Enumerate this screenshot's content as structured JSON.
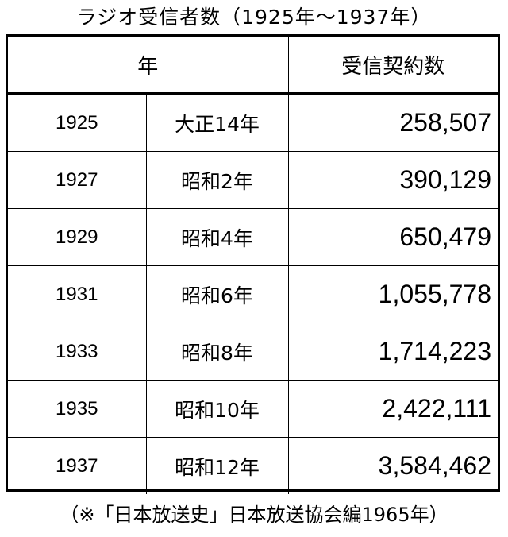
{
  "title": "ラジオ受信者数（1925年～1937年）",
  "header": {
    "year": "年",
    "count": "受信契約数"
  },
  "rows": [
    {
      "year": "1925",
      "era": "大正14年",
      "count": "258,507"
    },
    {
      "year": "1927",
      "era": "昭和2年",
      "count": "390,129"
    },
    {
      "year": "1929",
      "era": "昭和4年",
      "count": "650,479"
    },
    {
      "year": "1931",
      "era": "昭和6年",
      "count": "1,055,778"
    },
    {
      "year": "1933",
      "era": "昭和8年",
      "count": "1,714,223"
    },
    {
      "year": "1935",
      "era": "昭和10年",
      "count": "2,422,111"
    },
    {
      "year": "1937",
      "era": "昭和12年",
      "count": "3,584,462"
    }
  ],
  "source_note": "（※「日本放送史」日本放送協会編1965年）"
}
